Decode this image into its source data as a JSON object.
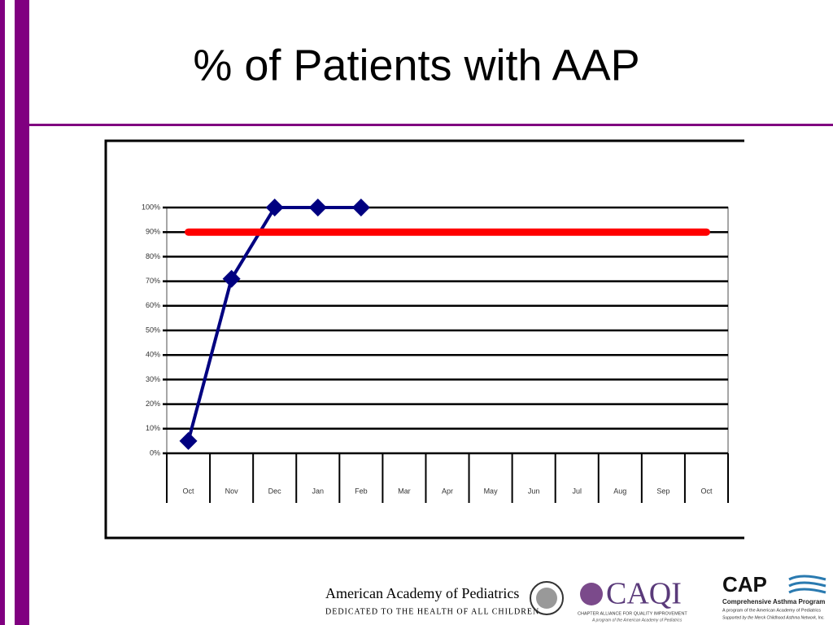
{
  "chart_data": {
    "type": "line",
    "title": "% of Patients with AAP",
    "categories": [
      "Oct",
      "Nov",
      "Dec",
      "Jan",
      "Feb",
      "Mar",
      "Apr",
      "May",
      "Jun",
      "Jul",
      "Aug",
      "Sep",
      "Oct"
    ],
    "series": [
      {
        "color": "#000080",
        "values": [
          5,
          71,
          100,
          100,
          100,
          null,
          null,
          null,
          null,
          null,
          null,
          null,
          null
        ]
      },
      {
        "color": "#ff0000",
        "values": [
          90,
          90,
          90,
          90,
          90,
          90,
          90,
          90,
          90,
          90,
          90,
          90,
          90
        ]
      }
    ],
    "ylim": [
      0,
      100
    ],
    "yticks": [
      {
        "value": 0,
        "label": "0%"
      },
      {
        "value": 10,
        "label": "10%"
      },
      {
        "value": 20,
        "label": "20%"
      },
      {
        "value": 30,
        "label": "30%"
      },
      {
        "value": 40,
        "label": "40%"
      },
      {
        "value": 50,
        "label": "50%"
      },
      {
        "value": 60,
        "label": "60%"
      },
      {
        "value": 70,
        "label": "70%"
      },
      {
        "value": 80,
        "label": "80%"
      },
      {
        "value": 90,
        "label": "90%"
      },
      {
        "value": 100,
        "label": "100%"
      }
    ],
    "grid": true
  },
  "footer": {
    "aap": {
      "name": "American Academy of Pediatrics",
      "tagline": "DEDICATED TO THE HEALTH OF ALL CHILDREN"
    },
    "caqi": {
      "name": "CAQI",
      "line1": "CHAPTER ALLIANCE FOR QUALITY IMPROVEMENT",
      "line2": "A program of the American Academy of Pediatrics"
    },
    "cap": {
      "name": "CAP",
      "line1": "Comprehensive Asthma Program",
      "line2": "A program of the American Academy of Pediatrics",
      "line3": "Supported by the Merck Childhood Asthma Network, Inc."
    }
  }
}
